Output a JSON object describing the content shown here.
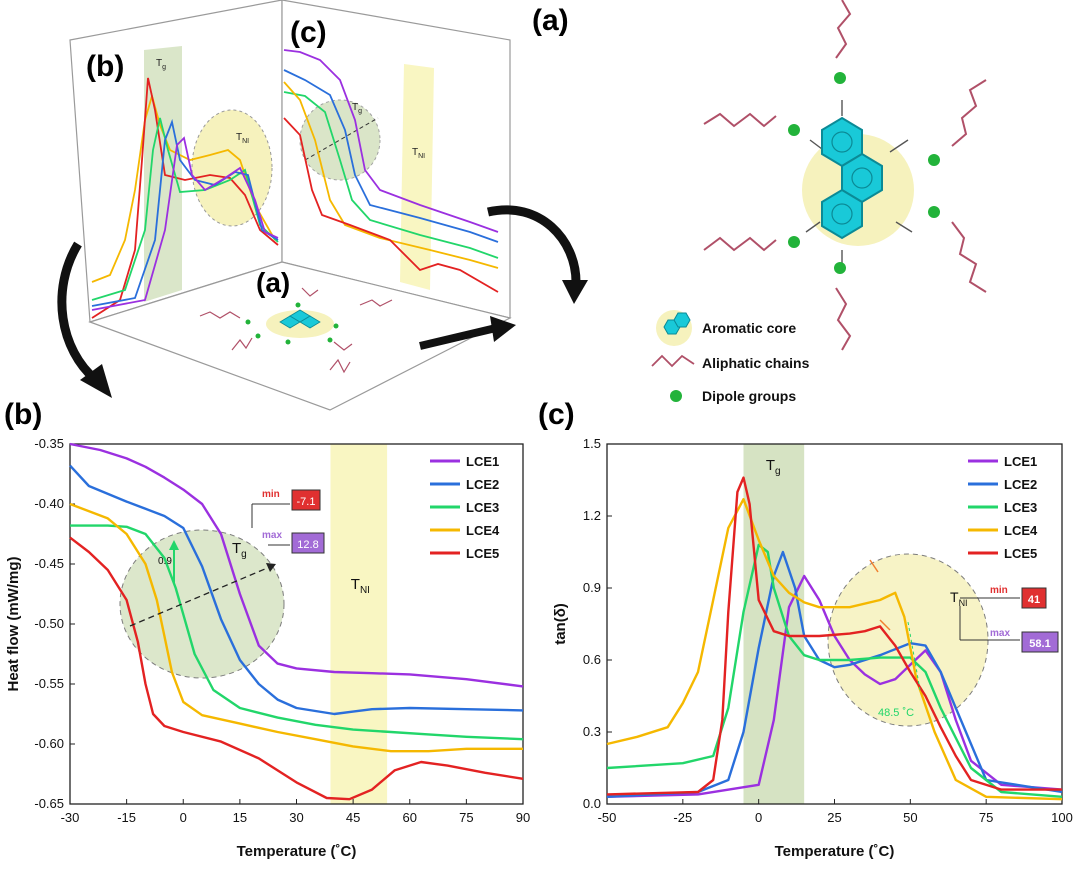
{
  "figure": {
    "labels": {
      "a": "(a)",
      "b": "(b)",
      "c": "(c)"
    },
    "schematic_legend": {
      "core": "Aromatic core",
      "chains": "Aliphatic chains",
      "dipoles": "Dipole groups"
    },
    "colors": {
      "LCE1": "#9b30e0",
      "LCE2": "#2a6fdb",
      "LCE3": "#22d66a",
      "LCE4": "#f5b800",
      "LCE5": "#e32222",
      "tg_band": "#d6e3c3",
      "tni_band": "#f9f6c2",
      "core_fill": "#19c9d8",
      "chain": "#b05068",
      "dipole": "#22b33a",
      "min_box": "#e03030",
      "max_box": "#a26bd6"
    }
  },
  "chart_data": [
    {
      "id": "b",
      "type": "line",
      "title": "",
      "xlabel": "Temperature (˚C)",
      "ylabel": "Heat flow (mW/mg)",
      "xlim": [
        -30,
        90
      ],
      "ylim": [
        -0.65,
        -0.35
      ],
      "xticks": [
        "-30",
        "-15",
        "0",
        "15",
        "30",
        "45",
        "60",
        "75",
        "90"
      ],
      "yticks": [
        "-0.35",
        "-0.40",
        "-0.45",
        "-0.50",
        "-0.55",
        "-0.60",
        "-0.65"
      ],
      "grid": false,
      "legend_position": "top-right",
      "bands": [
        {
          "label": "T",
          "sub": "NI",
          "x0": 39,
          "x1": 54
        }
      ],
      "annotations": {
        "tg_label": "T",
        "tg_sub": "g",
        "slope": "0.9",
        "min_label": "min",
        "min_value": "-7.1",
        "max_label": "max",
        "max_value": "12.8"
      },
      "series": [
        {
          "name": "LCE1",
          "x": [
            -30,
            -22,
            -15,
            -10,
            -5,
            0,
            5,
            10,
            15,
            20,
            25,
            30,
            40,
            50,
            60,
            75,
            90
          ],
          "values": [
            -0.35,
            -0.355,
            -0.362,
            -0.369,
            -0.378,
            -0.388,
            -0.4,
            -0.425,
            -0.475,
            -0.518,
            -0.533,
            -0.537,
            -0.54,
            -0.541,
            -0.542,
            -0.546,
            -0.552
          ]
        },
        {
          "name": "LCE2",
          "x": [
            -30,
            -25,
            -15,
            -10,
            -5,
            0,
            5,
            10,
            15,
            20,
            25,
            30,
            40,
            45,
            50,
            60,
            75,
            90
          ],
          "values": [
            -0.368,
            -0.385,
            -0.398,
            -0.404,
            -0.41,
            -0.42,
            -0.452,
            -0.496,
            -0.53,
            -0.55,
            -0.563,
            -0.57,
            -0.575,
            -0.573,
            -0.571,
            -0.57,
            -0.571,
            -0.572
          ]
        },
        {
          "name": "LCE3",
          "x": [
            -30,
            -20,
            -15,
            -10,
            -5,
            -2,
            0,
            3,
            8,
            15,
            25,
            35,
            45,
            55,
            65,
            75,
            90
          ],
          "values": [
            -0.418,
            -0.418,
            -0.419,
            -0.425,
            -0.445,
            -0.47,
            -0.492,
            -0.525,
            -0.555,
            -0.57,
            -0.578,
            -0.584,
            -0.588,
            -0.59,
            -0.592,
            -0.594,
            -0.596
          ]
        },
        {
          "name": "LCE4",
          "x": [
            -30,
            -20,
            -15,
            -10,
            -7,
            -5,
            -3,
            0,
            5,
            15,
            25,
            35,
            45,
            55,
            65,
            75,
            90
          ],
          "values": [
            -0.4,
            -0.412,
            -0.425,
            -0.45,
            -0.48,
            -0.51,
            -0.54,
            -0.565,
            -0.576,
            -0.583,
            -0.59,
            -0.596,
            -0.602,
            -0.606,
            -0.606,
            -0.604,
            -0.604
          ]
        },
        {
          "name": "LCE5",
          "x": [
            -30,
            -25,
            -20,
            -15,
            -12,
            -10,
            -8,
            -5,
            0,
            10,
            20,
            30,
            38,
            44,
            50,
            56,
            63,
            70,
            80,
            90
          ],
          "values": [
            -0.428,
            -0.44,
            -0.455,
            -0.48,
            -0.515,
            -0.55,
            -0.575,
            -0.585,
            -0.59,
            -0.598,
            -0.612,
            -0.632,
            -0.645,
            -0.646,
            -0.638,
            -0.622,
            -0.615,
            -0.618,
            -0.624,
            -0.629
          ]
        }
      ]
    },
    {
      "id": "c",
      "type": "line",
      "title": "",
      "xlabel": "Temperature (˚C)",
      "ylabel": "tan(δ)",
      "xlim": [
        -50,
        100
      ],
      "ylim": [
        0.0,
        1.5
      ],
      "xticks": [
        "-50",
        "-25",
        "0",
        "25",
        "50",
        "75",
        "100"
      ],
      "yticks": [
        "0.0",
        "0.3",
        "0.6",
        "0.9",
        "1.2",
        "1.5"
      ],
      "grid": false,
      "legend_position": "top-right",
      "bands": [
        {
          "label": "T",
          "sub": "g",
          "x0": -5,
          "x1": 15
        }
      ],
      "annotations": {
        "tni_label": "T",
        "tni_sub": "NI",
        "temp_note": "48.5 ˚C",
        "min_label": "min",
        "min_value": "41",
        "max_label": "max",
        "max_value": "58.1"
      },
      "series": [
        {
          "name": "LCE1",
          "x": [
            -50,
            -20,
            0,
            5,
            10,
            15,
            20,
            25,
            30,
            35,
            40,
            45,
            50,
            55,
            60,
            65,
            70,
            80,
            100
          ],
          "values": [
            0.03,
            0.04,
            0.08,
            0.35,
            0.82,
            0.95,
            0.85,
            0.7,
            0.6,
            0.54,
            0.5,
            0.52,
            0.58,
            0.64,
            0.55,
            0.35,
            0.18,
            0.08,
            0.06
          ]
        },
        {
          "name": "LCE2",
          "x": [
            -50,
            -20,
            -10,
            -5,
            0,
            5,
            8,
            12,
            15,
            20,
            25,
            30,
            40,
            50,
            55,
            60,
            65,
            75,
            100
          ],
          "values": [
            0.03,
            0.05,
            0.1,
            0.3,
            0.65,
            0.95,
            1.05,
            0.9,
            0.7,
            0.6,
            0.57,
            0.58,
            0.62,
            0.67,
            0.66,
            0.55,
            0.4,
            0.1,
            0.05
          ]
        },
        {
          "name": "LCE3",
          "x": [
            -50,
            -25,
            -15,
            -10,
            -5,
            0,
            3,
            5,
            10,
            15,
            20,
            30,
            40,
            50,
            55,
            60,
            70,
            80,
            100
          ],
          "values": [
            0.15,
            0.17,
            0.2,
            0.4,
            0.8,
            1.08,
            1.05,
            0.9,
            0.7,
            0.62,
            0.6,
            0.6,
            0.61,
            0.61,
            0.55,
            0.4,
            0.15,
            0.05,
            0.03
          ]
        },
        {
          "name": "LCE4",
          "x": [
            -50,
            -40,
            -30,
            -25,
            -20,
            -15,
            -10,
            -5,
            0,
            5,
            10,
            15,
            20,
            25,
            30,
            40,
            45,
            48,
            52,
            58,
            65,
            75,
            100
          ],
          "values": [
            0.25,
            0.28,
            0.32,
            0.42,
            0.55,
            0.85,
            1.15,
            1.27,
            1.1,
            0.95,
            0.88,
            0.84,
            0.82,
            0.82,
            0.82,
            0.85,
            0.88,
            0.78,
            0.52,
            0.3,
            0.1,
            0.03,
            0.02
          ]
        },
        {
          "name": "LCE5",
          "x": [
            -50,
            -20,
            -15,
            -12,
            -10,
            -7,
            -5,
            -3,
            0,
            5,
            10,
            20,
            30,
            35,
            40,
            45,
            50,
            55,
            60,
            65,
            70,
            80,
            100
          ],
          "values": [
            0.04,
            0.05,
            0.1,
            0.35,
            0.8,
            1.3,
            1.36,
            1.25,
            0.85,
            0.72,
            0.7,
            0.7,
            0.71,
            0.72,
            0.74,
            0.66,
            0.55,
            0.45,
            0.32,
            0.2,
            0.1,
            0.06,
            0.06
          ]
        }
      ]
    }
  ]
}
